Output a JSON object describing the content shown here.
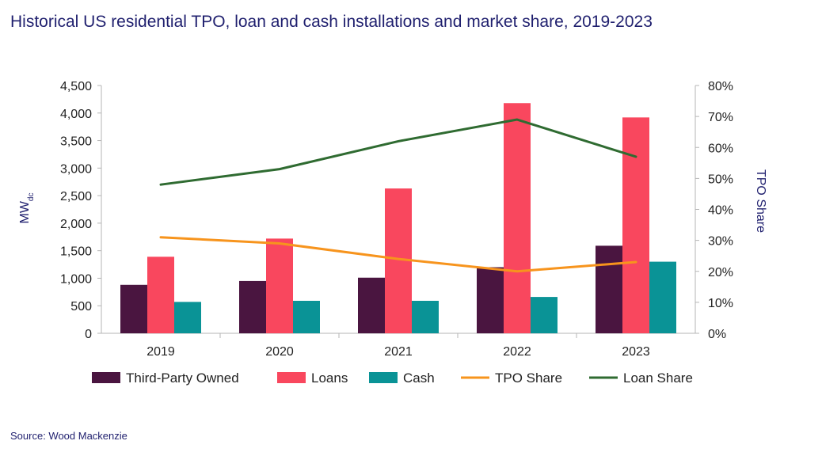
{
  "title": "Historical US residential TPO, loan and cash installations and market share, 2019-2023",
  "source": "Source: Wood Mackenzie",
  "chart_data": {
    "type": "bar",
    "categories": [
      "2019",
      "2020",
      "2021",
      "2022",
      "2023"
    ],
    "series": [
      {
        "name": "Third-Party Owned",
        "type": "bar",
        "axis": "left",
        "color": "#4a1540",
        "values": [
          880,
          950,
          1010,
          1200,
          1590
        ]
      },
      {
        "name": "Loans",
        "type": "bar",
        "axis": "left",
        "color": "#f9475e",
        "values": [
          1390,
          1720,
          2630,
          4180,
          3920
        ]
      },
      {
        "name": "Cash",
        "type": "bar",
        "axis": "left",
        "color": "#0a9396",
        "values": [
          570,
          590,
          590,
          660,
          1300
        ]
      },
      {
        "name": "TPO Share",
        "type": "line",
        "axis": "right",
        "color": "#f7941d",
        "values": [
          0.31,
          0.29,
          0.24,
          0.2,
          0.23
        ]
      },
      {
        "name": "Loan Share",
        "type": "line",
        "axis": "right",
        "color": "#2f6b31",
        "values": [
          0.48,
          0.53,
          0.62,
          0.69,
          0.57
        ]
      }
    ],
    "ylabel": "MW",
    "ylabel_subscript": "dc",
    "y2label": "TPO Share",
    "ylim": [
      0,
      4500
    ],
    "y_ticks": [
      "0",
      "500",
      "1,000",
      "1,500",
      "2,000",
      "2,500",
      "3,000",
      "3,500",
      "4,000",
      "4,500"
    ],
    "y2lim": [
      0,
      0.8
    ],
    "y2_ticks": [
      "0%",
      "10%",
      "20%",
      "30%",
      "40%",
      "50%",
      "60%",
      "70%",
      "80%"
    ],
    "grid": false,
    "legend": "bottom"
  }
}
